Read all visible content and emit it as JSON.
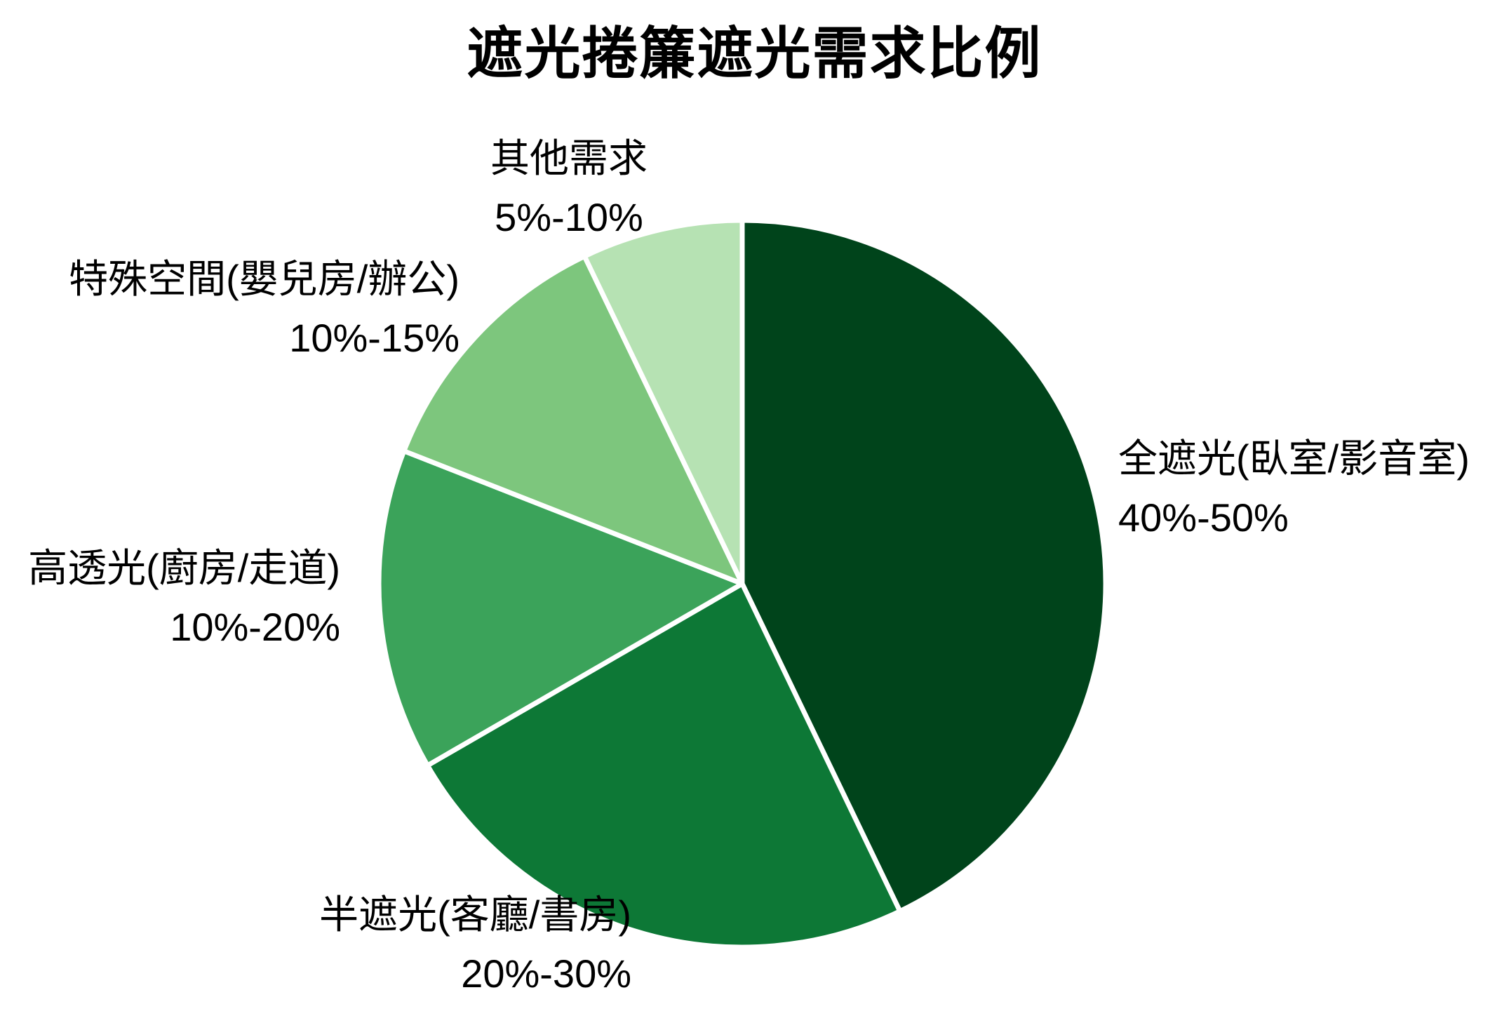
{
  "title": "遮光捲簾遮光需求比例",
  "chart_data": {
    "type": "pie",
    "title": "遮光捲簾遮光需求比例",
    "start_angle_deg": 0,
    "direction": "clockwise",
    "total": 105,
    "background": "#ffffff",
    "divider_color": "#ffffff",
    "legend_position": "labels-outside-slices",
    "slices": [
      {
        "label": "全遮光(臥室/影音室)",
        "range": "40%-50%",
        "value": 45,
        "color": "#00441b"
      },
      {
        "label": "半遮光(客廳/書房)",
        "range": "20%-30%",
        "value": 25,
        "color": "#0d7836"
      },
      {
        "label": "高透光(廚房/走道)",
        "range": "10%-20%",
        "value": 15,
        "color": "#3ba35a"
      },
      {
        "label": "特殊空間(嬰兒房/辦公)",
        "range": "10%-15%",
        "value": 12.5,
        "color": "#7dc67d"
      },
      {
        "label": "其他需求",
        "range": "5%-10%",
        "value": 7.5,
        "color": "#b6e2b3"
      }
    ]
  }
}
